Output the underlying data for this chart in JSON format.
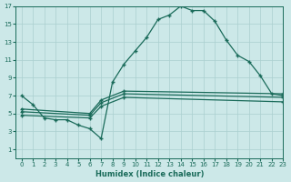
{
  "bg_color": "#cce8e8",
  "grid_color": "#aacfcf",
  "line_color": "#1a6b5a",
  "xlabel": "Humidex (Indice chaleur)",
  "xlim": [
    -0.5,
    23
  ],
  "ylim": [
    0,
    17
  ],
  "xticks": [
    0,
    1,
    2,
    3,
    4,
    5,
    6,
    7,
    8,
    9,
    10,
    11,
    12,
    13,
    14,
    15,
    16,
    17,
    18,
    19,
    20,
    21,
    22,
    23
  ],
  "yticks": [
    1,
    3,
    5,
    7,
    9,
    11,
    13,
    15,
    17
  ],
  "curve1_x": [
    0,
    1,
    2,
    3,
    4,
    5,
    6,
    7,
    8,
    9,
    10,
    11,
    12,
    13,
    14,
    15,
    16,
    17,
    18,
    19,
    20,
    21,
    22,
    23
  ],
  "curve1_y": [
    7.0,
    6.0,
    4.5,
    4.3,
    4.3,
    3.7,
    3.3,
    2.2,
    8.5,
    10.5,
    12.0,
    13.5,
    15.5,
    16.0,
    17.0,
    16.5,
    16.5,
    15.3,
    13.2,
    11.5,
    10.8,
    9.2,
    7.2,
    7.0
  ],
  "curve2_x": [
    0,
    6,
    7,
    9,
    23
  ],
  "curve2_y": [
    5.5,
    5.0,
    6.5,
    7.5,
    7.2
  ],
  "curve3_x": [
    0,
    6,
    7,
    9,
    23
  ],
  "curve3_y": [
    5.2,
    4.8,
    6.2,
    7.2,
    6.8
  ],
  "curve4_x": [
    0,
    6,
    7,
    9,
    23
  ],
  "curve4_y": [
    4.8,
    4.5,
    5.8,
    6.8,
    6.3
  ],
  "marker": "+"
}
